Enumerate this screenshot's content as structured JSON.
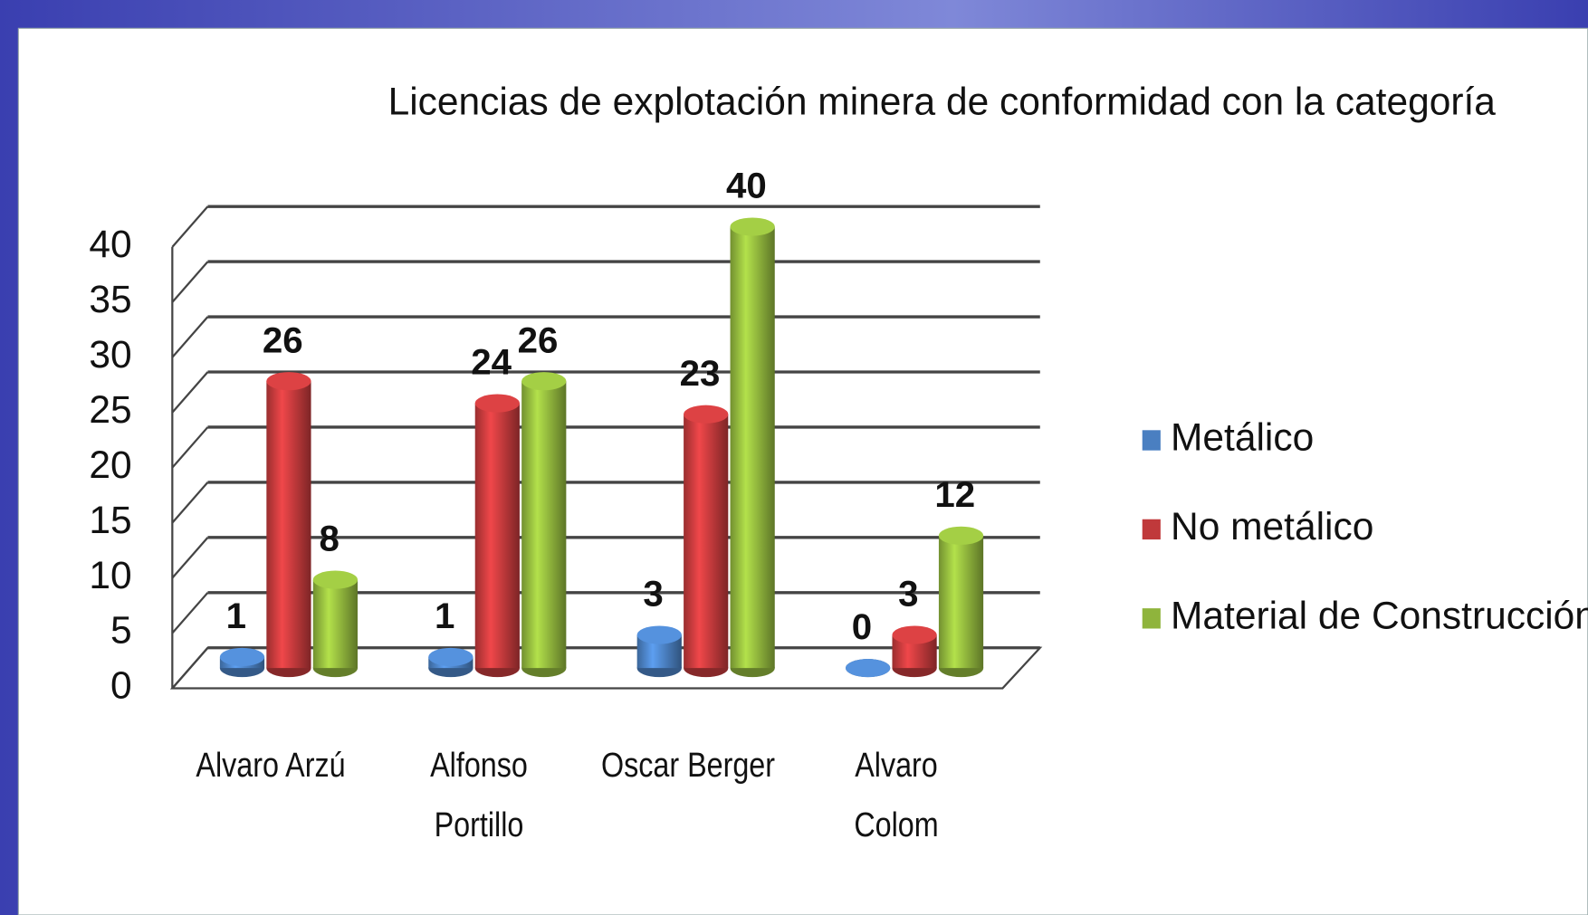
{
  "chart_data": {
    "type": "bar3d",
    "title": "Licencias de explotación minera de conformidad con la categoría",
    "categories": [
      "Alvaro Arzú",
      "Alfonso\nPortillo",
      "Oscar Berger",
      "Alvaro\nColom"
    ],
    "series": [
      {
        "name": "Metálico",
        "color": "#4a7fc1",
        "values": [
          1,
          1,
          3,
          0
        ]
      },
      {
        "name": "No metálico",
        "color": "#c0393b",
        "values": [
          26,
          24,
          23,
          3
        ]
      },
      {
        "name": "Material de Construcción",
        "color": "#8fb43c",
        "values": [
          8,
          26,
          40,
          12
        ]
      }
    ],
    "ylim": [
      0,
      40
    ],
    "yticks": [
      0,
      5,
      10,
      15,
      20,
      25,
      30,
      35,
      40
    ],
    "grid": true,
    "legend": "right"
  }
}
